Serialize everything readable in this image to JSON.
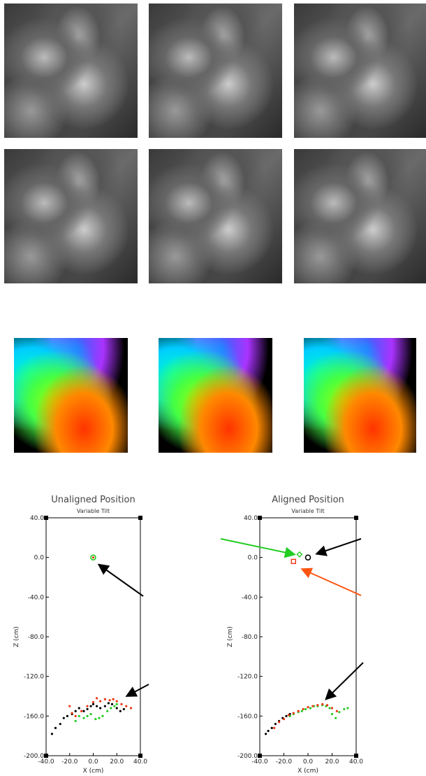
{
  "chart_data": [
    {
      "type": "scatter",
      "title": "Unaligned Position",
      "subtitle": "Variable Tilt",
      "x_label": "X (cm)",
      "y_label": "Z (cm)",
      "xlim": [
        -40,
        40
      ],
      "ylim": [
        -200,
        40
      ],
      "xticks": [
        {
          "value": -40,
          "label": "-40.0"
        },
        {
          "value": -20,
          "label": "-20.0"
        },
        {
          "value": 0,
          "label": "0.0"
        },
        {
          "value": 20,
          "label": "20.0"
        },
        {
          "value": 40,
          "label": "40.0"
        }
      ],
      "yticks": [
        {
          "value": 40,
          "label": "40.0"
        },
        {
          "value": 0,
          "label": "0.0"
        },
        {
          "value": -40,
          "label": "-40.0"
        },
        {
          "value": -80,
          "label": "-80.0"
        },
        {
          "value": -120,
          "label": "-120.0"
        },
        {
          "value": -160,
          "label": "-160.0"
        },
        {
          "value": -200,
          "label": "-200.0"
        }
      ],
      "series": [
        {
          "color": "#000000",
          "marker": "dot",
          "x": [
            -35,
            -32,
            -28,
            -25,
            -22,
            -18,
            -15,
            -12,
            -8,
            -5,
            -2,
            0,
            3,
            6,
            10,
            13,
            16,
            20,
            23,
            26
          ],
          "values": [
            -178,
            -172,
            -168,
            -162,
            -160,
            -158,
            -155,
            -152,
            -155,
            -153,
            -150,
            -148,
            -150,
            -152,
            -150,
            -147,
            -148,
            -152,
            -155,
            -153
          ]
        },
        {
          "color": "#22cc22",
          "marker": "dot",
          "x": [
            -15,
            -12,
            -8,
            -5,
            -2,
            2,
            5,
            8,
            12,
            15,
            18,
            20
          ],
          "values": [
            -165,
            -160,
            -162,
            -160,
            -158,
            -163,
            -162,
            -160,
            -155,
            -152,
            -150,
            -148
          ]
        },
        {
          "color": "#ee3311",
          "marker": "dot",
          "x": [
            -20,
            -18,
            -15,
            -10,
            -5,
            0,
            3,
            6,
            10,
            14,
            17,
            20,
            24,
            28,
            32
          ],
          "values": [
            -150,
            -157,
            -160,
            -155,
            -150,
            -146,
            -142,
            -145,
            -143,
            -144,
            -143,
            -145,
            -148,
            -150,
            -152
          ]
        },
        {
          "color": "#22cc22",
          "marker": "circle",
          "x": [
            0
          ],
          "values": [
            0
          ]
        },
        {
          "color": "#ee3311",
          "marker": "dot",
          "x": [
            0
          ],
          "values": [
            0
          ]
        }
      ]
    },
    {
      "type": "scatter",
      "title": "Aligned Position",
      "subtitle": "Variable Tilt",
      "x_label": "X (cm)",
      "y_label": "Z (cm)",
      "xlim": [
        -40,
        40
      ],
      "ylim": [
        -200,
        40
      ],
      "xticks": [
        {
          "value": -40,
          "label": "-40.0"
        },
        {
          "value": -20,
          "label": "-20.0"
        },
        {
          "value": 0,
          "label": "0.0"
        },
        {
          "value": 20,
          "label": "20.0"
        },
        {
          "value": 40,
          "label": "40.0"
        }
      ],
      "yticks": [
        {
          "value": 40,
          "label": "40.0"
        },
        {
          "value": 0,
          "label": "0.0"
        },
        {
          "value": -40,
          "label": "-40.0"
        },
        {
          "value": -80,
          "label": "-80.0"
        },
        {
          "value": -120,
          "label": "-120.0"
        },
        {
          "value": -160,
          "label": "-160.0"
        },
        {
          "value": -200,
          "label": "-200.0"
        }
      ],
      "series": [
        {
          "color": "#000000",
          "marker": "dot",
          "x": [
            -35,
            -33,
            -30,
            -27,
            -24,
            -21,
            -18,
            -15
          ],
          "values": [
            -178,
            -175,
            -172,
            -168,
            -165,
            -162,
            -160,
            -158
          ]
        },
        {
          "color": "#22cc22",
          "marker": "dot",
          "x": [
            -15,
            -12,
            -8,
            -5,
            -2,
            2,
            5,
            8,
            12,
            15,
            18,
            20,
            23,
            26,
            30,
            33
          ],
          "values": [
            -160,
            -158,
            -156,
            -155,
            -153,
            -152,
            -150,
            -150,
            -149,
            -150,
            -152,
            -158,
            -162,
            -156,
            -153,
            -152
          ]
        },
        {
          "color": "#ee3311",
          "marker": "dot",
          "x": [
            -28,
            -24,
            -20,
            -16,
            -12,
            -8,
            -4,
            0,
            4,
            8,
            12,
            16,
            20,
            24
          ],
          "values": [
            -172,
            -166,
            -163,
            -159,
            -157,
            -155,
            -153,
            -151,
            -150,
            -149,
            -148,
            -149,
            -152,
            -155
          ]
        },
        {
          "color": "#000000",
          "marker": "circle",
          "x": [
            0
          ],
          "values": [
            0
          ]
        },
        {
          "color": "#22cc22",
          "marker": "diamond",
          "x": [
            -7
          ],
          "values": [
            3
          ]
        },
        {
          "color": "#ee3311",
          "marker": "square",
          "x": [
            -12
          ],
          "values": [
            -4
          ]
        }
      ]
    }
  ]
}
